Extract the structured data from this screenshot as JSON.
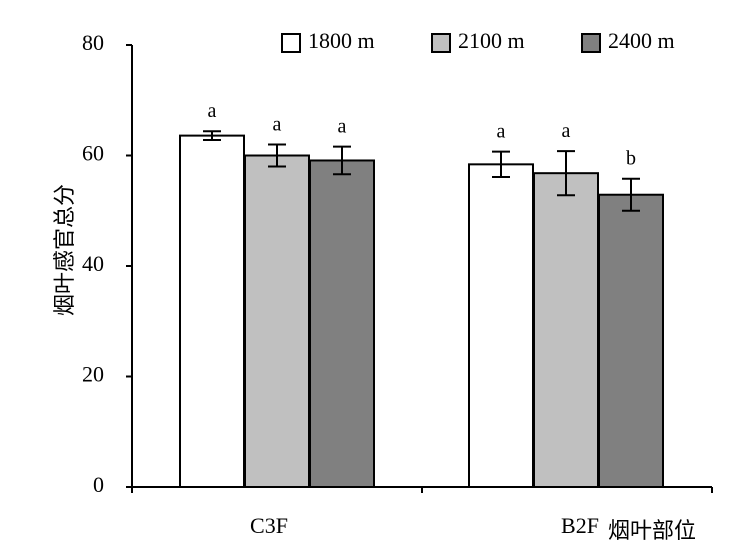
{
  "chart_data": {
    "type": "bar",
    "categories": [
      "C3F",
      "B2F"
    ],
    "series": [
      {
        "name": "1800 m",
        "color": "#ffffff",
        "values": [
          63.6,
          58.4
        ],
        "errors": [
          0.8,
          2.3
        ],
        "significance": [
          "a",
          "a"
        ]
      },
      {
        "name": "2100 m",
        "color": "#c0c0c0",
        "values": [
          60.0,
          56.8
        ],
        "errors": [
          2.0,
          4.0
        ],
        "significance": [
          "a",
          "a"
        ]
      },
      {
        "name": "2400 m",
        "color": "#808080",
        "values": [
          59.1,
          52.9
        ],
        "errors": [
          2.5,
          2.9
        ],
        "significance": [
          "a",
          "b"
        ]
      }
    ],
    "xlabel": "烟叶部位",
    "ylabel": "烟叶感官总分",
    "ylim": [
      0,
      80
    ],
    "yticks": [
      0,
      20,
      40,
      60,
      80
    ],
    "legend_position": "top-right",
    "grid": false
  }
}
